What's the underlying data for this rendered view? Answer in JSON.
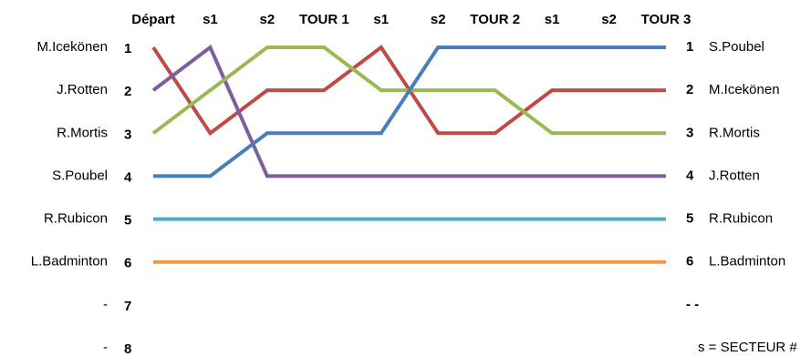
{
  "chart_data": {
    "type": "bump",
    "categories": [
      "Départ",
      "s1",
      "s2",
      "TOUR 1",
      "s1",
      "s2",
      "TOUR 2",
      "s1",
      "s2",
      "TOUR 3"
    ],
    "series": [
      {
        "name": "M.Icekönen",
        "color": "#be4b48",
        "values": [
          1,
          3,
          2,
          2,
          1,
          3,
          3,
          2,
          2,
          2
        ]
      },
      {
        "name": "J.Rotten",
        "color": "#7d5fa0",
        "values": [
          2,
          1,
          4,
          4,
          4,
          4,
          4,
          4,
          4,
          4
        ]
      },
      {
        "name": "R.Mortis",
        "color": "#98b954",
        "values": [
          3,
          2,
          1,
          1,
          2,
          2,
          2,
          3,
          3,
          3
        ]
      },
      {
        "name": "S.Poubel",
        "color": "#4a7ebb",
        "values": [
          4,
          4,
          3,
          3,
          3,
          1,
          1,
          1,
          1,
          1
        ]
      },
      {
        "name": "R.Rubicon",
        "color": "#4bacc6",
        "values": [
          5,
          5,
          5,
          5,
          5,
          5,
          5,
          5,
          5,
          5
        ]
      },
      {
        "name": "L.Badminton",
        "color": "#f79646",
        "values": [
          6,
          6,
          6,
          6,
          6,
          6,
          6,
          6,
          6,
          6
        ]
      }
    ],
    "ylim": [
      8,
      1
    ],
    "yticks": [
      1,
      2,
      3,
      4,
      5,
      6,
      7,
      8
    ],
    "left_extra_labels": [
      "-",
      "-"
    ],
    "right_labels": [
      "S.Poubel",
      "M.Icekönen",
      "R.Mortis",
      "J.Rotten",
      "R.Rubicon",
      "L.Badminton",
      "- -"
    ],
    "note": "s = SECTEUR #"
  }
}
